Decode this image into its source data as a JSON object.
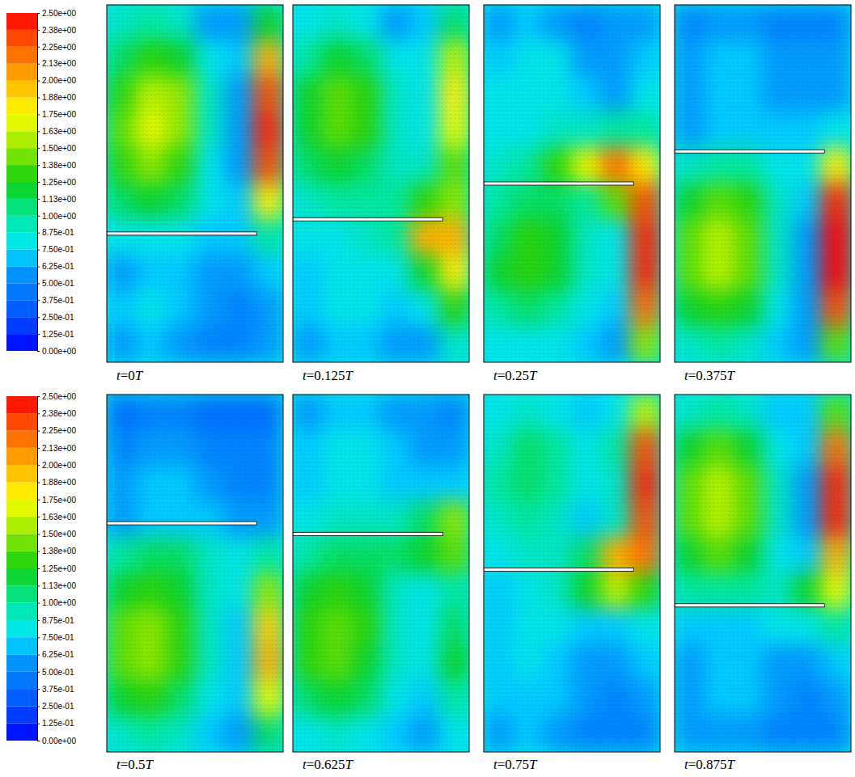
{
  "chart_data": {
    "type": "contour",
    "colorbar": {
      "range": [
        0,
        2.5
      ],
      "ticks": [
        {
          "value": 0,
          "label": "0.00e+00"
        },
        {
          "value": 0.125,
          "label": "1.25e-01"
        },
        {
          "value": 0.25,
          "label": "2.50e-01"
        },
        {
          "value": 0.375,
          "label": "3.75e-01"
        },
        {
          "value": 0.5,
          "label": "5.00e-01"
        },
        {
          "value": 0.625,
          "label": "6.25e-01"
        },
        {
          "value": 0.75,
          "label": "7.50e-01"
        },
        {
          "value": 0.875,
          "label": "8.75e-01"
        },
        {
          "value": 1.0,
          "label": "1.00e+00"
        },
        {
          "value": 1.125,
          "label": "1.13e+00"
        },
        {
          "value": 1.25,
          "label": "1.25e+00"
        },
        {
          "value": 1.375,
          "label": "1.38e+00"
        },
        {
          "value": 1.5,
          "label": "1.50e+00"
        },
        {
          "value": 1.625,
          "label": "1.63e+00"
        },
        {
          "value": 1.75,
          "label": "1.75e+00"
        },
        {
          "value": 1.875,
          "label": "1.88e+00"
        },
        {
          "value": 2.0,
          "label": "2.00e+00"
        },
        {
          "value": 2.125,
          "label": "2.13e+00"
        },
        {
          "value": 2.25,
          "label": "2.25e+00"
        },
        {
          "value": 2.375,
          "label": "2.38e+00"
        },
        {
          "value": 2.5,
          "label": "2.50e+00"
        }
      ]
    },
    "ylim": [
      0,
      1
    ],
    "panels": [
      {
        "title": "t=0T",
        "plate_y": 0.36,
        "cells": [
          [
            0.9,
            1.0,
            0.9,
            0.6,
            0.6,
            1.2
          ],
          [
            1.1,
            1.3,
            1.2,
            0.8,
            0.7,
            2.0
          ],
          [
            1.3,
            1.6,
            1.5,
            0.9,
            0.6,
            2.3
          ],
          [
            1.4,
            1.7,
            1.5,
            0.9,
            0.6,
            2.4
          ],
          [
            1.3,
            1.5,
            1.3,
            0.8,
            0.6,
            2.3
          ],
          [
            1.1,
            1.2,
            1.1,
            0.8,
            0.7,
            1.8
          ],
          [
            0.8,
            0.8,
            0.8,
            0.7,
            0.7,
            1.0
          ],
          [
            0.6,
            0.7,
            0.7,
            0.6,
            0.6,
            0.7
          ],
          [
            0.7,
            0.8,
            0.7,
            0.6,
            0.5,
            0.6
          ],
          [
            0.6,
            0.7,
            0.6,
            0.5,
            0.5,
            0.6
          ]
        ]
      },
      {
        "title": "t=0.125T",
        "plate_y": 0.4,
        "cells": [
          [
            0.8,
            0.9,
            0.8,
            0.6,
            0.7,
            1.1
          ],
          [
            1.0,
            1.2,
            1.1,
            0.8,
            0.8,
            1.6
          ],
          [
            1.2,
            1.4,
            1.3,
            0.9,
            0.8,
            1.8
          ],
          [
            1.2,
            1.4,
            1.3,
            0.9,
            0.8,
            1.7
          ],
          [
            1.1,
            1.2,
            1.1,
            0.9,
            0.9,
            1.4
          ],
          [
            0.9,
            1.0,
            1.0,
            1.0,
            1.3,
            1.5
          ],
          [
            0.8,
            0.8,
            0.9,
            1.0,
            2.0,
            2.0
          ],
          [
            0.7,
            0.8,
            0.8,
            0.8,
            1.2,
            1.8
          ],
          [
            0.7,
            0.8,
            0.8,
            0.7,
            0.8,
            1.3
          ],
          [
            0.6,
            0.7,
            0.7,
            0.6,
            0.6,
            0.9
          ]
        ]
      },
      {
        "title": "t=0.25T",
        "plate_y": 0.5,
        "cells": [
          [
            0.6,
            0.7,
            0.6,
            0.5,
            0.6,
            0.6
          ],
          [
            0.7,
            0.8,
            0.8,
            0.6,
            0.6,
            0.7
          ],
          [
            0.8,
            0.8,
            0.8,
            0.7,
            0.6,
            0.8
          ],
          [
            0.8,
            0.8,
            0.9,
            0.9,
            1.0,
            1.0
          ],
          [
            0.9,
            1.0,
            1.3,
            1.7,
            2.2,
            1.8
          ],
          [
            1.0,
            1.1,
            1.1,
            1.0,
            1.4,
            2.3
          ],
          [
            1.1,
            1.3,
            1.2,
            0.9,
            0.8,
            2.4
          ],
          [
            1.2,
            1.3,
            1.2,
            0.9,
            0.8,
            2.4
          ],
          [
            1.0,
            1.1,
            1.0,
            0.8,
            0.7,
            2.2
          ],
          [
            0.8,
            0.8,
            0.8,
            0.7,
            0.6,
            1.5
          ]
        ]
      },
      {
        "title": "t=0.375T",
        "plate_y": 0.59,
        "cells": [
          [
            0.5,
            0.6,
            0.6,
            0.5,
            0.5,
            0.5
          ],
          [
            0.6,
            0.7,
            0.7,
            0.6,
            0.6,
            0.6
          ],
          [
            0.6,
            0.7,
            0.7,
            0.6,
            0.6,
            0.6
          ],
          [
            0.6,
            0.7,
            0.7,
            0.7,
            0.7,
            0.8
          ],
          [
            0.9,
            1.0,
            1.0,
            0.8,
            0.8,
            1.8
          ],
          [
            1.2,
            1.4,
            1.3,
            0.9,
            0.7,
            2.4
          ],
          [
            1.4,
            1.6,
            1.4,
            0.9,
            0.6,
            2.5
          ],
          [
            1.4,
            1.6,
            1.4,
            0.9,
            0.6,
            2.5
          ],
          [
            1.2,
            1.3,
            1.2,
            0.8,
            0.6,
            2.3
          ],
          [
            0.9,
            1.0,
            0.9,
            0.7,
            0.6,
            1.4
          ]
        ]
      },
      {
        "title": "t=0.5T",
        "plate_y": 0.64,
        "cells": [
          [
            0.4,
            0.5,
            0.5,
            0.4,
            0.4,
            0.4
          ],
          [
            0.5,
            0.6,
            0.6,
            0.5,
            0.5,
            0.5
          ],
          [
            0.6,
            0.7,
            0.7,
            0.6,
            0.5,
            0.5
          ],
          [
            0.6,
            0.7,
            0.7,
            0.7,
            0.6,
            0.6
          ],
          [
            1.0,
            1.1,
            1.1,
            0.9,
            0.8,
            1.0
          ],
          [
            1.2,
            1.3,
            1.2,
            0.9,
            0.8,
            1.5
          ],
          [
            1.4,
            1.5,
            1.3,
            0.9,
            0.7,
            1.9
          ],
          [
            1.4,
            1.5,
            1.3,
            0.9,
            0.7,
            2.0
          ],
          [
            1.2,
            1.3,
            1.1,
            0.8,
            0.7,
            1.7
          ],
          [
            0.9,
            1.0,
            0.9,
            0.7,
            0.6,
            1.1
          ]
        ]
      },
      {
        "title": "t=0.625T",
        "plate_y": 0.61,
        "cells": [
          [
            0.6,
            0.7,
            0.7,
            0.6,
            0.6,
            0.5
          ],
          [
            0.7,
            0.8,
            0.8,
            0.7,
            0.6,
            0.6
          ],
          [
            0.7,
            0.8,
            0.8,
            0.7,
            0.7,
            0.7
          ],
          [
            0.8,
            0.9,
            0.9,
            0.9,
            1.1,
            1.5
          ],
          [
            1.0,
            1.1,
            1.1,
            1.1,
            1.2,
            1.4
          ],
          [
            1.2,
            1.3,
            1.2,
            0.9,
            0.8,
            1.0
          ],
          [
            1.3,
            1.4,
            1.3,
            0.9,
            0.8,
            1.1
          ],
          [
            1.3,
            1.4,
            1.2,
            0.9,
            0.8,
            1.2
          ],
          [
            1.1,
            1.2,
            1.1,
            0.8,
            0.7,
            1.0
          ],
          [
            0.8,
            0.9,
            0.8,
            0.7,
            0.6,
            0.8
          ]
        ]
      },
      {
        "title": "t=0.75T",
        "plate_y": 0.51,
        "cells": [
          [
            0.8,
            0.9,
            0.8,
            0.7,
            0.8,
            1.6
          ],
          [
            0.9,
            1.1,
            1.0,
            0.8,
            1.0,
            2.3
          ],
          [
            1.0,
            1.1,
            1.0,
            0.8,
            0.9,
            2.4
          ],
          [
            0.9,
            1.0,
            0.9,
            0.7,
            0.9,
            2.3
          ],
          [
            0.8,
            0.9,
            0.9,
            1.1,
            2.0,
            2.2
          ],
          [
            0.7,
            0.8,
            0.9,
            1.2,
            1.6,
            1.3
          ],
          [
            0.7,
            0.8,
            0.8,
            0.7,
            0.7,
            0.8
          ],
          [
            0.7,
            0.8,
            0.7,
            0.6,
            0.6,
            0.7
          ],
          [
            0.7,
            0.7,
            0.7,
            0.6,
            0.5,
            0.6
          ],
          [
            0.6,
            0.7,
            0.6,
            0.5,
            0.5,
            0.5
          ]
        ]
      },
      {
        "title": "t=0.875T",
        "plate_y": 0.41,
        "cells": [
          [
            0.9,
            1.0,
            0.9,
            0.7,
            0.7,
            1.4
          ],
          [
            1.2,
            1.4,
            1.2,
            0.8,
            0.7,
            2.2
          ],
          [
            1.4,
            1.6,
            1.4,
            0.9,
            0.6,
            2.4
          ],
          [
            1.4,
            1.6,
            1.4,
            0.9,
            0.6,
            2.4
          ],
          [
            1.2,
            1.4,
            1.2,
            0.8,
            0.7,
            2.0
          ],
          [
            1.0,
            1.0,
            1.0,
            0.9,
            1.2,
            1.7
          ],
          [
            0.7,
            0.7,
            0.7,
            0.8,
            0.8,
            1.0
          ],
          [
            0.6,
            0.7,
            0.7,
            0.6,
            0.6,
            0.7
          ],
          [
            0.6,
            0.7,
            0.7,
            0.6,
            0.5,
            0.6
          ],
          [
            0.6,
            0.6,
            0.6,
            0.5,
            0.5,
            0.5
          ]
        ]
      }
    ]
  }
}
